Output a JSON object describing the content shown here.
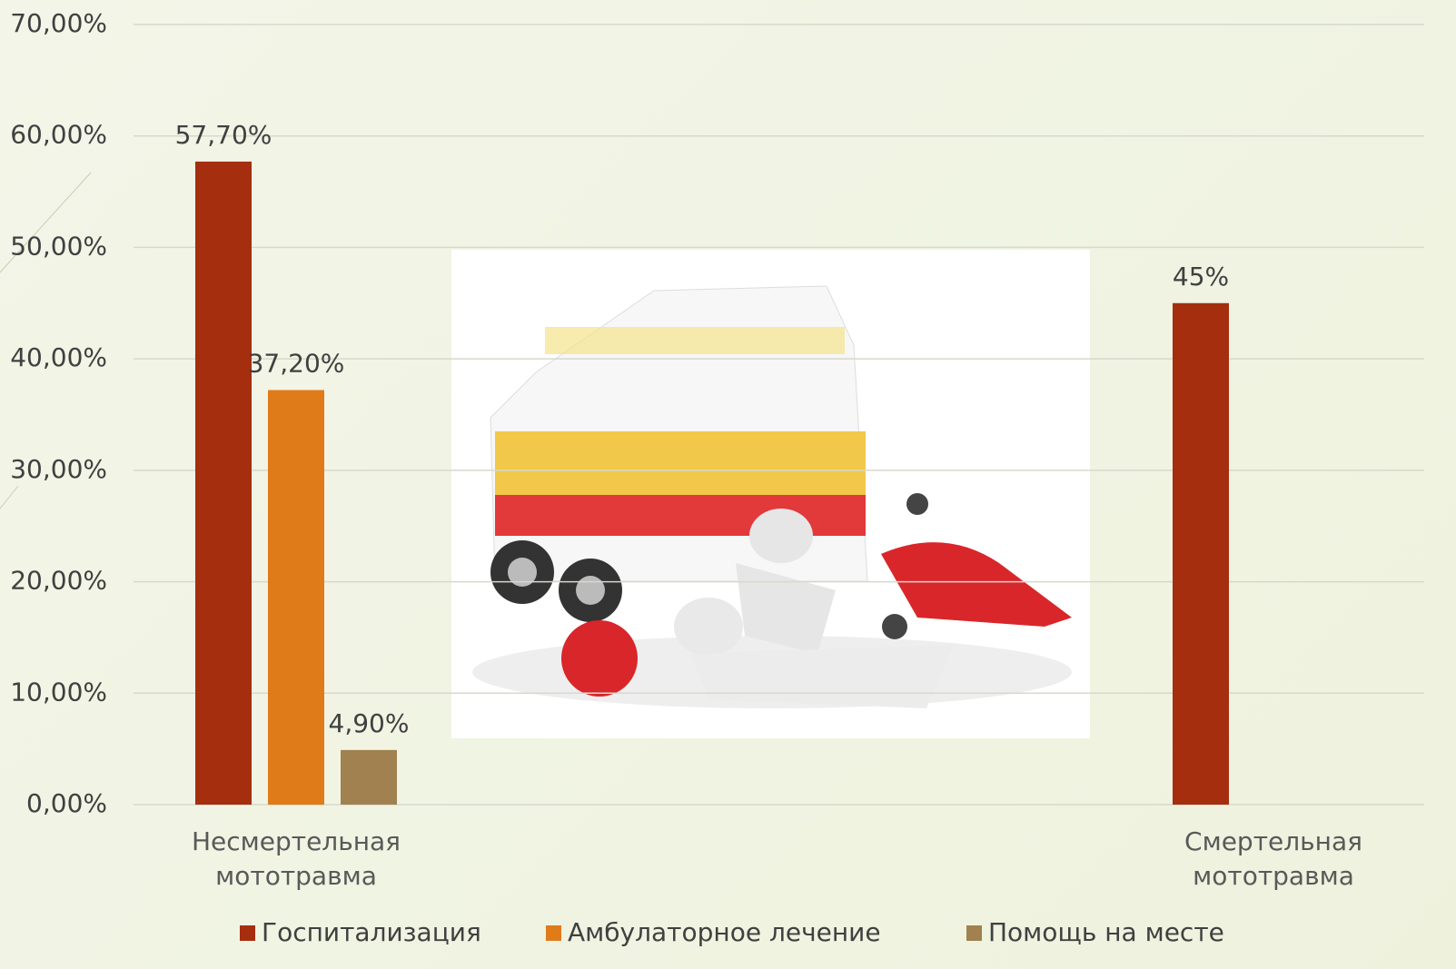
{
  "chart_data": {
    "type": "bar",
    "categories": [
      "Несмертельная мототравма",
      "Смертельная мототравма"
    ],
    "series": [
      {
        "name": "Госпитализация",
        "color": "#a52e0f",
        "values": [
          57.7,
          45
        ],
        "value_labels": [
          "57,70%",
          "45%"
        ]
      },
      {
        "name": "Амбулаторное лечение",
        "color": "#e07b1a",
        "values": [
          37.2,
          null
        ],
        "value_labels": [
          "37,20%",
          null
        ]
      },
      {
        "name": "Помощь на месте",
        "color": "#a0814f",
        "values": [
          4.9,
          null
        ],
        "value_labels": [
          "4,90%",
          null
        ]
      }
    ],
    "ylim": [
      0,
      70
    ],
    "yticks": [
      {
        "value": 0,
        "label": "0,00%"
      },
      {
        "value": 10,
        "label": "10,00%"
      },
      {
        "value": 20,
        "label": "20,00%"
      },
      {
        "value": 30,
        "label": "30,00%"
      },
      {
        "value": 40,
        "label": "40,00%"
      },
      {
        "value": 50,
        "label": "50,00%"
      },
      {
        "value": 60,
        "label": "60,00%"
      },
      {
        "value": 70,
        "label": "70,00%"
      }
    ],
    "grid": true,
    "legend": "bottom"
  }
}
